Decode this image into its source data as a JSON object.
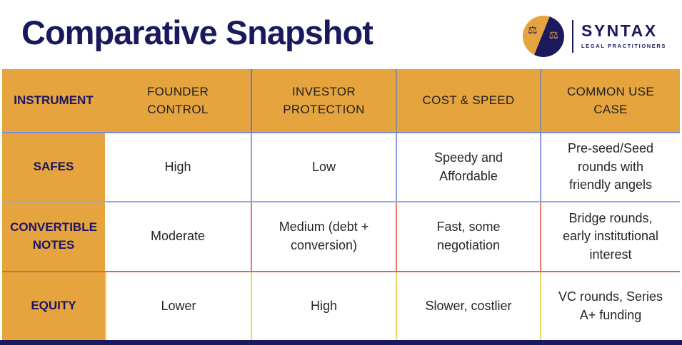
{
  "header": {
    "title": "Comparative Snapshot",
    "logo": {
      "brand": "SYNTAX",
      "tagline": "LEGAL PRACTITIONERS",
      "icon": "scales-of-justice"
    }
  },
  "chart_data": {
    "type": "table",
    "title": "Comparative Snapshot",
    "columns": [
      "INSTRUMENT",
      "FOUNDER CONTROL",
      "INVESTOR PROTECTION",
      "COST & SPEED",
      "COMMON USE CASE"
    ],
    "rows": [
      {
        "label": "SAFES",
        "cells": [
          "High",
          "Low",
          "Speedy and Affordable",
          "Pre-seed/Seed rounds with friendly angels"
        ]
      },
      {
        "label": "CONVERTIBLE NOTES",
        "cells": [
          "Moderate",
          "Medium (debt + conversion)",
          "Fast, some negotiation",
          "Bridge rounds, early institutional interest"
        ]
      },
      {
        "label": "EQUITY",
        "cells": [
          "Lower",
          "High",
          "Slower, costlier",
          "VC rounds, Series A+ funding"
        ]
      }
    ]
  },
  "colors": {
    "brand_navy": "#1B1A5E",
    "brand_gold": "#E5A43D",
    "divider_blue": "#5C7CDA",
    "divider_periwinkle": "#8F99E4",
    "divider_gray": "#8F8F8F",
    "divider_salmon": "#E8786D",
    "divider_red": "#E2604D",
    "divider_yellow": "#F3D765",
    "cell_text": "#262626"
  }
}
